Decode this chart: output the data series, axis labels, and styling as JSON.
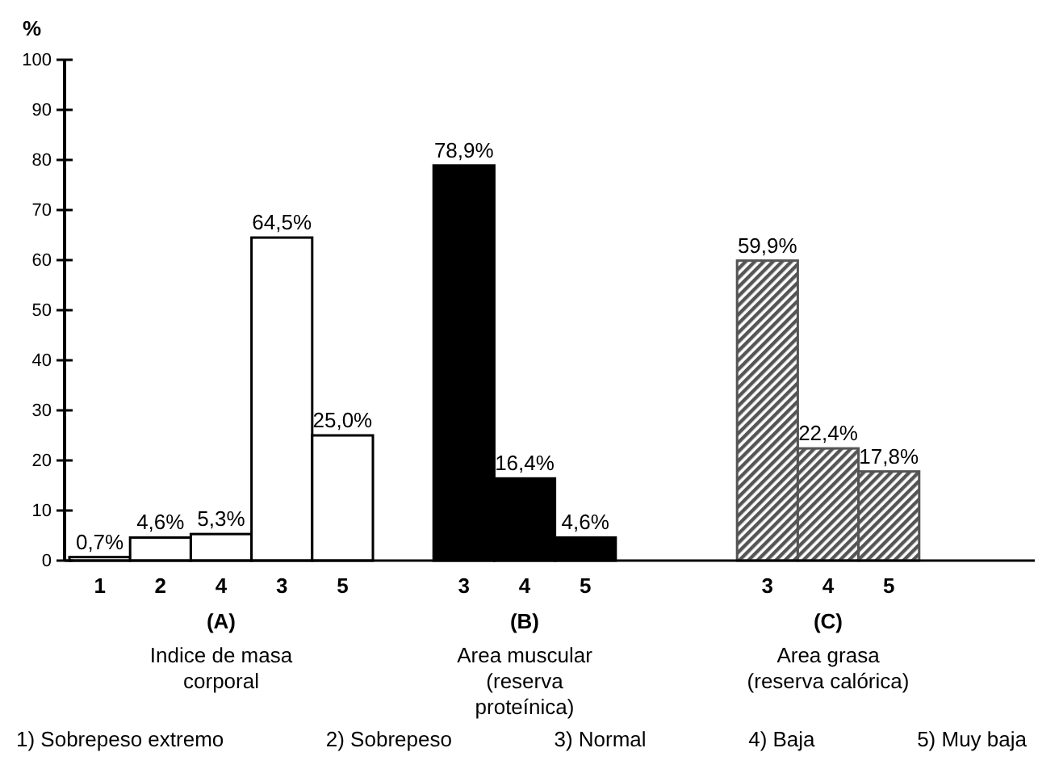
{
  "chart_data": {
    "type": "bar",
    "ylabel": "%",
    "categories": [
      "1",
      "2",
      "4",
      "3",
      "5",
      null,
      "3",
      "4",
      "5",
      null,
      null,
      "3",
      "4",
      "5"
    ],
    "series": [
      {
        "name": "(A)",
        "color": "#ffffff",
        "values": [
          0.7,
          4.6,
          5.3,
          64.5,
          25.0,
          null,
          null,
          null,
          null,
          null,
          null,
          null,
          null,
          null
        ],
        "value_labels": [
          "0,7%",
          "4,6%",
          "5,3%",
          "64,5%",
          "25,0%",
          null,
          null,
          null,
          null,
          null,
          null,
          null,
          null,
          null
        ]
      },
      {
        "name": "(B)",
        "color": "#000000",
        "values": [
          null,
          null,
          null,
          null,
          null,
          null,
          78.9,
          16.4,
          4.6,
          null,
          null,
          null,
          null,
          null
        ],
        "value_labels": [
          null,
          null,
          null,
          null,
          null,
          null,
          "78,9%",
          "16,4%",
          "4,6%",
          null,
          null,
          null,
          null,
          null
        ]
      },
      {
        "name": "(C)",
        "color": "#555555",
        "values": [
          null,
          null,
          null,
          null,
          null,
          null,
          null,
          null,
          null,
          null,
          null,
          59.9,
          22.4,
          17.8
        ],
        "value_labels": [
          null,
          null,
          null,
          null,
          null,
          null,
          null,
          null,
          null,
          null,
          null,
          "59,9%",
          "22,4%",
          "17,8%"
        ]
      }
    ],
    "ylim": [
      0,
      100
    ],
    "yticks": [
      0,
      10,
      20,
      30,
      40,
      50,
      60,
      70,
      80,
      90,
      100
    ],
    "grid": false,
    "annotations": [
      "Indice de masa corporal",
      "Area muscular (reserva proteínica)",
      "Area grasa (reserva calórica)",
      "1) Sobrepeso extremo",
      "2) Sobrepeso",
      "3) Normal",
      "4) Baja",
      "5) Muy baja"
    ]
  }
}
